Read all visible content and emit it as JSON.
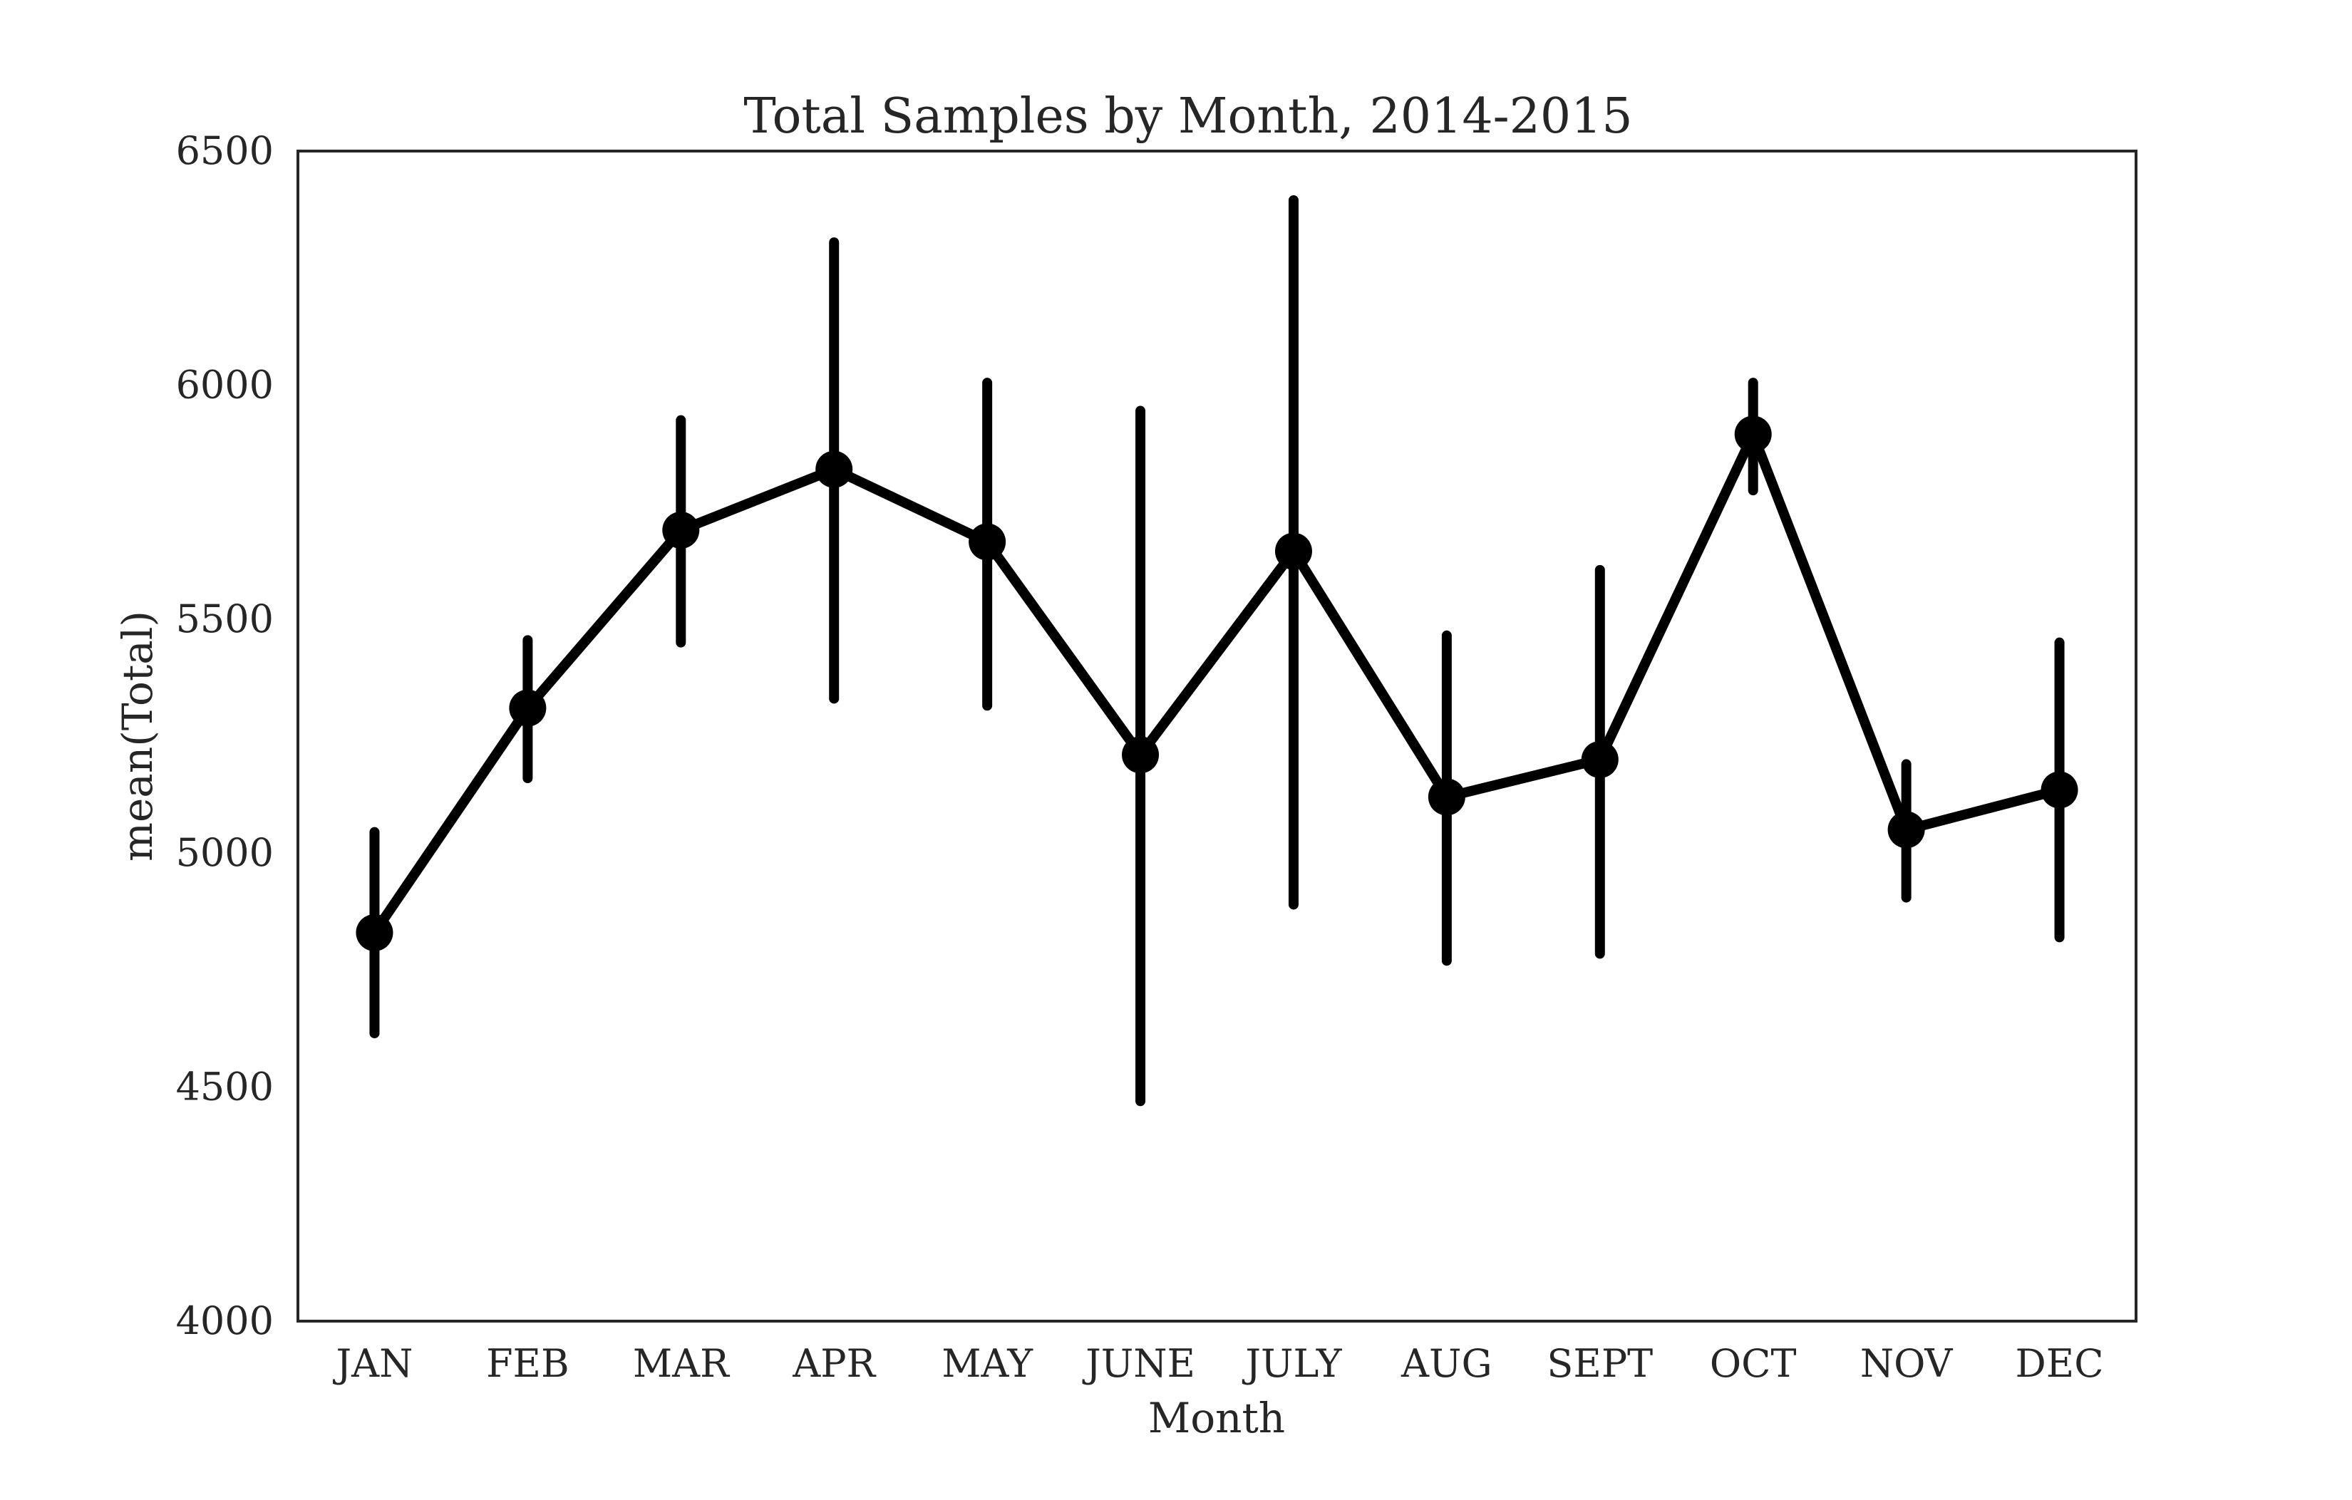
{
  "chart_data": {
    "type": "line",
    "title": "Total Samples by Month, 2014-2015",
    "xlabel": "Month",
    "ylabel": "mean(Total)",
    "categories": [
      "JAN",
      "FEB",
      "MAR",
      "APR",
      "MAY",
      "JUNE",
      "JULY",
      "AUG",
      "SEPT",
      "OCT",
      "NOV",
      "DEC"
    ],
    "ylim": [
      4000,
      6500
    ],
    "yticks": [
      "4000",
      "4500",
      "5000",
      "5500",
      "6000",
      "6500"
    ],
    "series": [
      {
        "values": [
          4830,
          5310,
          5690,
          5820,
          5665,
          5210,
          5645,
          5120,
          5200,
          5895,
          5050,
          5135
        ],
        "error_low": [
          4615,
          5160,
          5450,
          5330,
          5315,
          4470,
          4890,
          4770,
          4785,
          5775,
          4905,
          4820
        ],
        "error_high": [
          5045,
          5455,
          5925,
          6305,
          6005,
          5945,
          6395,
          5465,
          5605,
          6005,
          5190,
          5450
        ]
      }
    ],
    "grid": false,
    "legend": "none",
    "line_color": "#000000",
    "frame_color": "#262626"
  }
}
